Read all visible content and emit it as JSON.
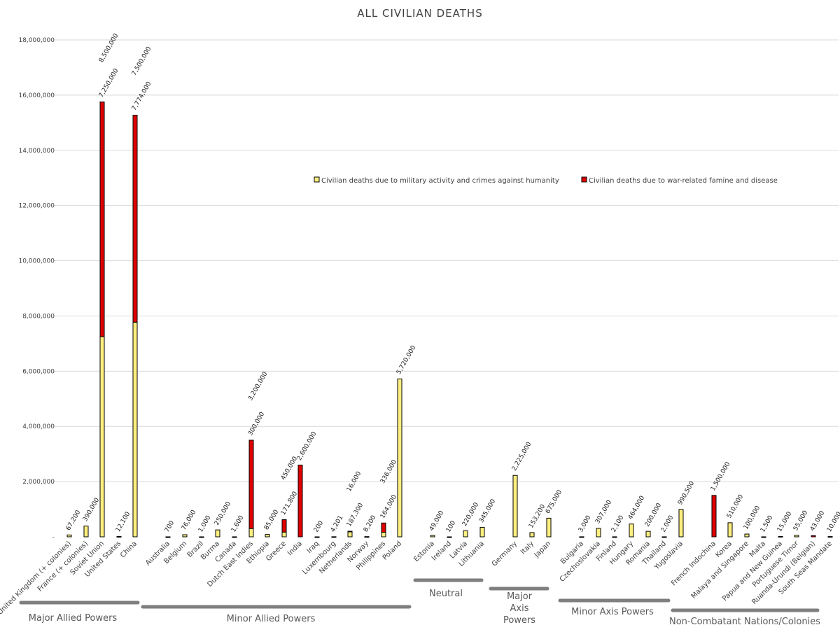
{
  "chart_data": {
    "type": "bar",
    "stacked": true,
    "title": "ALL CIVILIAN DEATHS",
    "ylim": [
      0,
      18000000
    ],
    "yticks": [
      0,
      2000000,
      4000000,
      6000000,
      8000000,
      10000000,
      12000000,
      14000000,
      16000000,
      18000000
    ],
    "ytick_labels": [
      "-",
      "2,000,000",
      "4,000,000",
      "6,000,000",
      "8,000,000",
      "10,000,000",
      "12,000,000",
      "14,000,000",
      "16,000,000",
      "18,000,000"
    ],
    "grid": true,
    "legend_position": "upper-right",
    "colors": {
      "military": "#ffef7f",
      "famine": "#e00000",
      "outline": "#000000"
    },
    "series": [
      {
        "name": "Civilian deaths due to military activity and crimes against humanity",
        "color": "#ffef7f"
      },
      {
        "name": "Civilian deaths due to war-related famine and disease",
        "color": "#e00000"
      }
    ],
    "categories": [
      {
        "name": "United Kingdom (+ colonies)",
        "military": 67200,
        "famine": 0,
        "mil_label": "67,200",
        "fam_label": ""
      },
      {
        "name": "France (+ colonies)",
        "military": 390000,
        "famine": 0,
        "mil_label": "390,000",
        "fam_label": ""
      },
      {
        "name": "Soviet Union",
        "military": 7250000,
        "famine": 8500000,
        "mil_label": "7,250,000",
        "fam_label": "8,500,000"
      },
      {
        "name": "United States",
        "military": 12100,
        "famine": 0,
        "mil_label": "12,100",
        "fam_label": ""
      },
      {
        "name": "China",
        "military": 7774000,
        "famine": 7500000,
        "mil_label": "7,774,000",
        "fam_label": "7,500,000"
      },
      {
        "name": "Australia",
        "military": 700,
        "famine": 0,
        "mil_label": "700",
        "fam_label": ""
      },
      {
        "name": "Belgium",
        "military": 76000,
        "famine": 0,
        "mil_label": "76,000",
        "fam_label": ""
      },
      {
        "name": "Brazil",
        "military": 1000,
        "famine": 0,
        "mil_label": "1,000",
        "fam_label": ""
      },
      {
        "name": "Burma",
        "military": 250000,
        "famine": 0,
        "mil_label": "250,000",
        "fam_label": ""
      },
      {
        "name": "Canada",
        "military": 1600,
        "famine": 0,
        "mil_label": "1,600",
        "fam_label": ""
      },
      {
        "name": "Dutch East Indies",
        "military": 300000,
        "famine": 3200000,
        "mil_label": "300,000",
        "fam_label": "3,200,000"
      },
      {
        "name": "Ethiopia",
        "military": 85000,
        "famine": 0,
        "mil_label": "85,000",
        "fam_label": ""
      },
      {
        "name": "Greece",
        "military": 171800,
        "famine": 450000,
        "mil_label": "171,800",
        "fam_label": "450,000"
      },
      {
        "name": "India",
        "military": 0,
        "famine": 2600000,
        "mil_label": "",
        "fam_label": "2,600,000"
      },
      {
        "name": "Iraq",
        "military": 200,
        "famine": 0,
        "mil_label": "200",
        "fam_label": ""
      },
      {
        "name": "Luxembourg",
        "military": 4201,
        "famine": 0,
        "mil_label": "4,201",
        "fam_label": ""
      },
      {
        "name": "Netherlands",
        "military": 187300,
        "famine": 16000,
        "mil_label": "187,300",
        "fam_label": "16,000"
      },
      {
        "name": "Norway",
        "military": 8200,
        "famine": 0,
        "mil_label": "8,200",
        "fam_label": ""
      },
      {
        "name": "Philippines",
        "military": 164000,
        "famine": 336000,
        "mil_label": "164,000",
        "fam_label": "336,000"
      },
      {
        "name": "Poland",
        "military": 5720000,
        "famine": 0,
        "mil_label": "5,720,000",
        "fam_label": ""
      },
      {
        "name": "Estonia",
        "military": 49000,
        "famine": 0,
        "mil_label": "49,000",
        "fam_label": ""
      },
      {
        "name": "Ireland",
        "military": 100,
        "famine": 0,
        "mil_label": "100",
        "fam_label": ""
      },
      {
        "name": "Latvia",
        "military": 220000,
        "famine": 0,
        "mil_label": "220,000",
        "fam_label": ""
      },
      {
        "name": "Lithuania",
        "military": 345000,
        "famine": 0,
        "mil_label": "345,000",
        "fam_label": ""
      },
      {
        "name": "Germany",
        "military": 2225000,
        "famine": 0,
        "mil_label": "2,225,000",
        "fam_label": ""
      },
      {
        "name": "Italy",
        "military": 153200,
        "famine": 0,
        "mil_label": "153,200",
        "fam_label": ""
      },
      {
        "name": "Japan",
        "military": 675000,
        "famine": 0,
        "mil_label": "675,000",
        "fam_label": ""
      },
      {
        "name": "Bulgaria",
        "military": 3000,
        "famine": 0,
        "mil_label": "3,000",
        "fam_label": ""
      },
      {
        "name": "Czechoslovakia",
        "military": 307000,
        "famine": 0,
        "mil_label": "307,000",
        "fam_label": ""
      },
      {
        "name": "Finland",
        "military": 2100,
        "famine": 0,
        "mil_label": "2,100",
        "fam_label": ""
      },
      {
        "name": "Hungary",
        "military": 464000,
        "famine": 0,
        "mil_label": "464,000",
        "fam_label": ""
      },
      {
        "name": "Romania",
        "military": 200000,
        "famine": 0,
        "mil_label": "200,000",
        "fam_label": ""
      },
      {
        "name": "Thailand",
        "military": 2000,
        "famine": 0,
        "mil_label": "2,000",
        "fam_label": ""
      },
      {
        "name": "Yugoslavia",
        "military": 990500,
        "famine": 0,
        "mil_label": "990,500",
        "fam_label": ""
      },
      {
        "name": "French Indochina",
        "military": 0,
        "famine": 1500000,
        "mil_label": "",
        "fam_label": "1,500,000"
      },
      {
        "name": "Korea",
        "military": 510000,
        "famine": 0,
        "mil_label": "510,000",
        "fam_label": ""
      },
      {
        "name": "Malaya and Singapore",
        "military": 100000,
        "famine": 0,
        "mil_label": "100,000",
        "fam_label": ""
      },
      {
        "name": "Malta",
        "military": 1500,
        "famine": 0,
        "mil_label": "1,500",
        "fam_label": ""
      },
      {
        "name": "Papua and New Guinea",
        "military": 15000,
        "famine": 0,
        "mil_label": "15,000",
        "fam_label": ""
      },
      {
        "name": "Portuguese Timor",
        "military": 55000,
        "famine": 0,
        "mil_label": "55,000",
        "fam_label": ""
      },
      {
        "name": "Ruanda-Urundi (Belgian)",
        "military": 0,
        "famine": 43000,
        "mil_label": "",
        "fam_label": "43,000"
      },
      {
        "name": "South Seas Mandate",
        "military": 10000,
        "famine": 0,
        "mil_label": "10,000",
        "fam_label": ""
      }
    ],
    "groups": [
      {
        "name": "Major Allied Powers",
        "from": 0,
        "to": 4
      },
      {
        "name": "Minor Allied Powers",
        "from": 5,
        "to": 19
      },
      {
        "name": "Neutral",
        "from": 20,
        "to": 23
      },
      {
        "name": "Major Axis Powers",
        "from": 24,
        "to": 26
      },
      {
        "name": "Minor Axis Powers",
        "from": 27,
        "to": 33
      },
      {
        "name": "Non-Combatant Nations/Colonies",
        "from": 34,
        "to": 41
      }
    ]
  }
}
